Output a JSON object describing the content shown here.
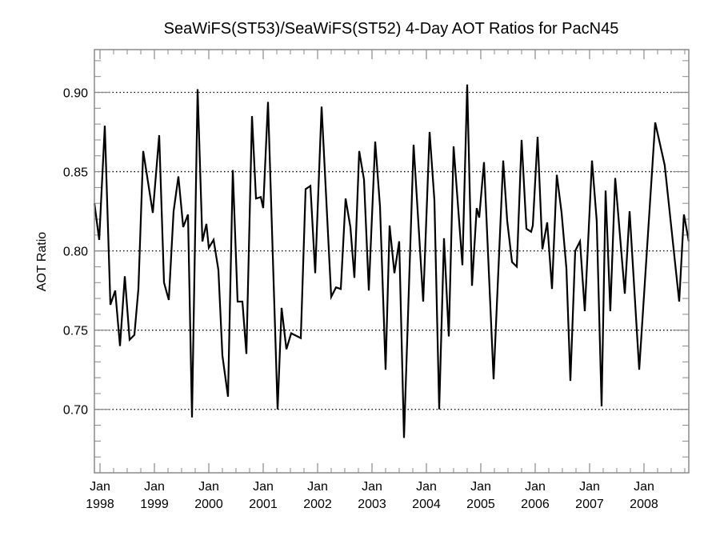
{
  "chart_data": {
    "type": "line",
    "title": "SeaWiFS(ST53)/SeaWiFS(ST52) 4-Day AOT Ratios for PacN45",
    "xlabel": "",
    "ylabel": "AOT Ratio",
    "xlim": [
      1997.897,
      2008.824
    ],
    "ylim": [
      0.66,
      0.927
    ],
    "grid": "horizontal dotted at major y ticks",
    "legend": "none",
    "colors": {
      "line": "#000000",
      "frame": "#8a8a8a",
      "grid": "#000000"
    },
    "y_ticks": [
      {
        "value": 0.7,
        "label": "0.70"
      },
      {
        "value": 0.75,
        "label": "0.75"
      },
      {
        "value": 0.8,
        "label": "0.80"
      },
      {
        "value": 0.85,
        "label": "0.85"
      },
      {
        "value": 0.9,
        "label": "0.90"
      }
    ],
    "y_minor_step": 0.01,
    "x_ticks": [
      {
        "value": 1998,
        "line1": "Jan",
        "line2": "1998"
      },
      {
        "value": 1999,
        "line1": "Jan",
        "line2": "1999"
      },
      {
        "value": 2000,
        "line1": "Jan",
        "line2": "2000"
      },
      {
        "value": 2001,
        "line1": "Jan",
        "line2": "2001"
      },
      {
        "value": 2002,
        "line1": "Jan",
        "line2": "2002"
      },
      {
        "value": 2003,
        "line1": "Jan",
        "line2": "2003"
      },
      {
        "value": 2004,
        "line1": "Jan",
        "line2": "2004"
      },
      {
        "value": 2005,
        "line1": "Jan",
        "line2": "2005"
      },
      {
        "value": 2006,
        "line1": "Jan",
        "line2": "2006"
      },
      {
        "value": 2007,
        "line1": "Jan",
        "line2": "2007"
      },
      {
        "value": 2008,
        "line1": "Jan",
        "line2": "2008"
      }
    ],
    "x_minor_step": 0.25,
    "series": [
      {
        "name": "AOT Ratio",
        "x": [
          1997.897,
          1997.985,
          1998.088,
          1998.191,
          1998.279,
          1998.368,
          1998.456,
          1998.544,
          1998.632,
          1998.706,
          1998.794,
          1998.971,
          1999.088,
          1999.176,
          1999.265,
          1999.353,
          1999.441,
          1999.529,
          1999.618,
          1999.691,
          1999.794,
          1999.882,
          1999.956,
          2000.0,
          2000.088,
          2000.176,
          2000.25,
          2000.353,
          2000.441,
          2000.529,
          2000.618,
          2000.691,
          2000.794,
          2000.868,
          2000.956,
          2001.0,
          2001.088,
          2001.265,
          2001.338,
          2001.426,
          2001.515,
          2001.691,
          2001.779,
          2001.868,
          2001.956,
          2002.074,
          2002.25,
          2002.338,
          2002.426,
          2002.515,
          2002.603,
          2002.676,
          2002.765,
          2002.853,
          2002.941,
          2003.059,
          2003.147,
          2003.25,
          2003.324,
          2003.412,
          2003.5,
          2003.588,
          2003.765,
          2003.941,
          2004.059,
          2004.147,
          2004.235,
          2004.324,
          2004.412,
          2004.5,
          2004.662,
          2004.75,
          2004.838,
          2004.926,
          2004.971,
          2005.059,
          2005.235,
          2005.412,
          2005.485,
          2005.574,
          2005.662,
          2005.75,
          2005.838,
          2005.926,
          2005.956,
          2006.044,
          2006.132,
          2006.221,
          2006.309,
          2006.397,
          2006.485,
          2006.574,
          2006.647,
          2006.735,
          2006.824,
          2006.912,
          2007.044,
          2007.132,
          2007.221,
          2007.294,
          2007.382,
          2007.471,
          2007.647,
          2007.735,
          2007.912,
          2008.206,
          2008.382,
          2008.647,
          2008.735,
          2008.824
        ],
        "y": [
          0.83,
          0.807,
          0.879,
          0.766,
          0.775,
          0.74,
          0.784,
          0.744,
          0.747,
          0.776,
          0.863,
          0.824,
          0.873,
          0.78,
          0.769,
          0.825,
          0.847,
          0.815,
          0.823,
          0.695,
          0.902,
          0.806,
          0.817,
          0.802,
          0.807,
          0.788,
          0.734,
          0.708,
          0.851,
          0.768,
          0.768,
          0.735,
          0.885,
          0.833,
          0.834,
          0.827,
          0.894,
          0.7,
          0.764,
          0.738,
          0.748,
          0.745,
          0.839,
          0.841,
          0.786,
          0.891,
          0.771,
          0.777,
          0.776,
          0.833,
          0.815,
          0.783,
          0.863,
          0.845,
          0.775,
          0.869,
          0.828,
          0.725,
          0.816,
          0.786,
          0.806,
          0.682,
          0.867,
          0.768,
          0.875,
          0.832,
          0.7,
          0.808,
          0.746,
          0.866,
          0.791,
          0.905,
          0.778,
          0.827,
          0.821,
          0.856,
          0.719,
          0.857,
          0.819,
          0.793,
          0.79,
          0.87,
          0.814,
          0.812,
          0.816,
          0.872,
          0.801,
          0.818,
          0.776,
          0.848,
          0.824,
          0.789,
          0.718,
          0.8,
          0.806,
          0.762,
          0.857,
          0.819,
          0.702,
          0.838,
          0.762,
          0.846,
          0.773,
          0.825,
          0.725,
          0.881,
          0.854,
          0.768,
          0.823,
          0.806
        ]
      }
    ]
  }
}
